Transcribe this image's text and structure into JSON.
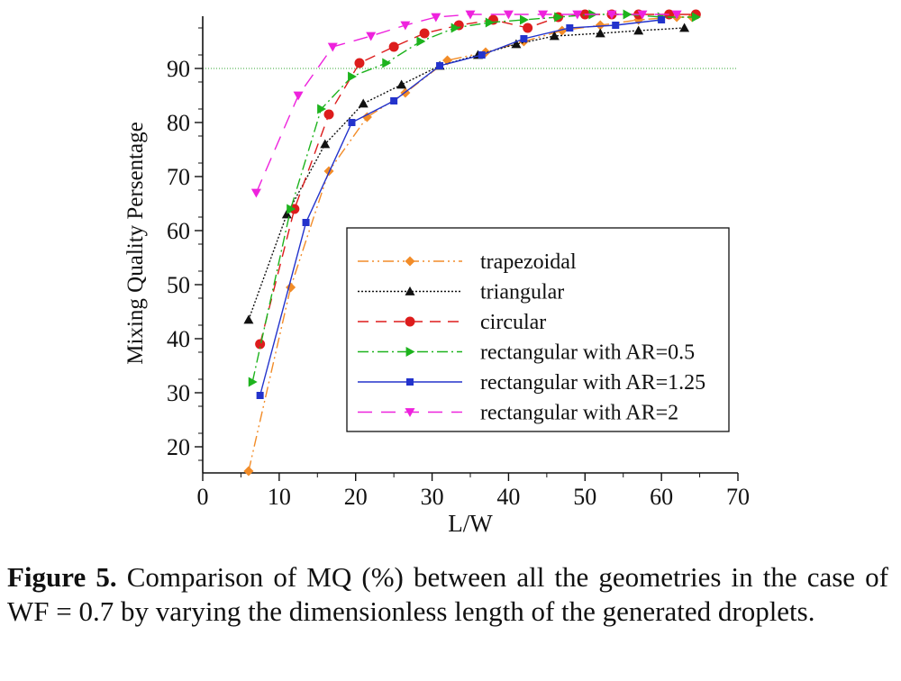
{
  "chart_data": {
    "type": "line",
    "title": "",
    "xlabel": "L/W",
    "ylabel": "Mixing Quality Persentage",
    "xlim": [
      0,
      70
    ],
    "ylim": [
      15,
      100
    ],
    "xticks": [
      0,
      10,
      20,
      30,
      40,
      50,
      60,
      70
    ],
    "yticks": [
      20,
      30,
      40,
      50,
      60,
      70,
      80,
      90
    ],
    "reference_line": {
      "y": 90,
      "color": "#5cb85c",
      "style": "dotted"
    },
    "legend_position": "center-right",
    "series": [
      {
        "name": "trapezoidal",
        "color": "#f28c28",
        "marker": "diamond",
        "dash": "12,4,2,4,2,4",
        "x": [
          6,
          11.5,
          16.5,
          21.5,
          26.5,
          32,
          37,
          42,
          47,
          52,
          57,
          62,
          64
        ],
        "y": [
          15.5,
          49.5,
          71,
          81,
          85.5,
          91.5,
          93,
          95,
          97,
          98,
          99,
          99.5,
          99.5
        ]
      },
      {
        "name": "triangular",
        "color": "#111111",
        "marker": "triangle-up",
        "dash": "2,2",
        "x": [
          6,
          11,
          16,
          21,
          26,
          31,
          36,
          41,
          46,
          52,
          57,
          63
        ],
        "y": [
          43.5,
          63,
          76,
          83.5,
          87,
          90.5,
          92.5,
          94.5,
          96,
          96.5,
          97,
          97.5
        ]
      },
      {
        "name": "circular",
        "color": "#dd1c1c",
        "marker": "circle",
        "dash": "12,8",
        "x": [
          7.5,
          12,
          16.5,
          20.5,
          25,
          29,
          33.5,
          38,
          42.5,
          46.5,
          50,
          53.5,
          57,
          61,
          64.5
        ],
        "y": [
          39,
          64,
          81.5,
          91,
          94,
          96.5,
          98,
          99,
          97.5,
          99.5,
          100,
          100,
          100,
          100,
          100
        ]
      },
      {
        "name": "rectangular with AR=0.5",
        "color": "#1db31d",
        "marker": "triangle-right",
        "dash": "12,4,2,4",
        "x": [
          6.5,
          11.5,
          15.5,
          19.5,
          24,
          28.5,
          33,
          37.5,
          42,
          46.5,
          51,
          55.5,
          60,
          64.5
        ],
        "y": [
          32,
          64,
          82.5,
          88.5,
          91,
          95,
          97.5,
          98.5,
          99,
          99.5,
          100,
          100,
          99.5,
          99.5
        ]
      },
      {
        "name": "rectangular with AR=1.25",
        "color": "#2333cc",
        "marker": "square",
        "dash": "",
        "x": [
          7.5,
          13.5,
          19.5,
          25,
          31,
          36.5,
          42,
          48,
          54,
          60
        ],
        "y": [
          29.5,
          61.5,
          80,
          84,
          90.5,
          92.5,
          95.5,
          97.5,
          98,
          99
        ]
      },
      {
        "name": "rectangular with AR=2",
        "color": "#ee22dd",
        "marker": "triangle-down",
        "dash": "16,10",
        "x": [
          7,
          12.5,
          17,
          22,
          26.5,
          30.5,
          35,
          40,
          44.5,
          49,
          53.5,
          57.5,
          62
        ],
        "y": [
          67,
          85,
          94,
          96,
          98,
          99.5,
          100,
          100,
          100,
          100,
          100,
          100,
          100
        ]
      }
    ]
  },
  "caption": {
    "label": "Figure 5.",
    "text": " Comparison of MQ (%) between all the geometries in the case of WF = 0.7 by varying the dimensionless length of the generated droplets."
  }
}
